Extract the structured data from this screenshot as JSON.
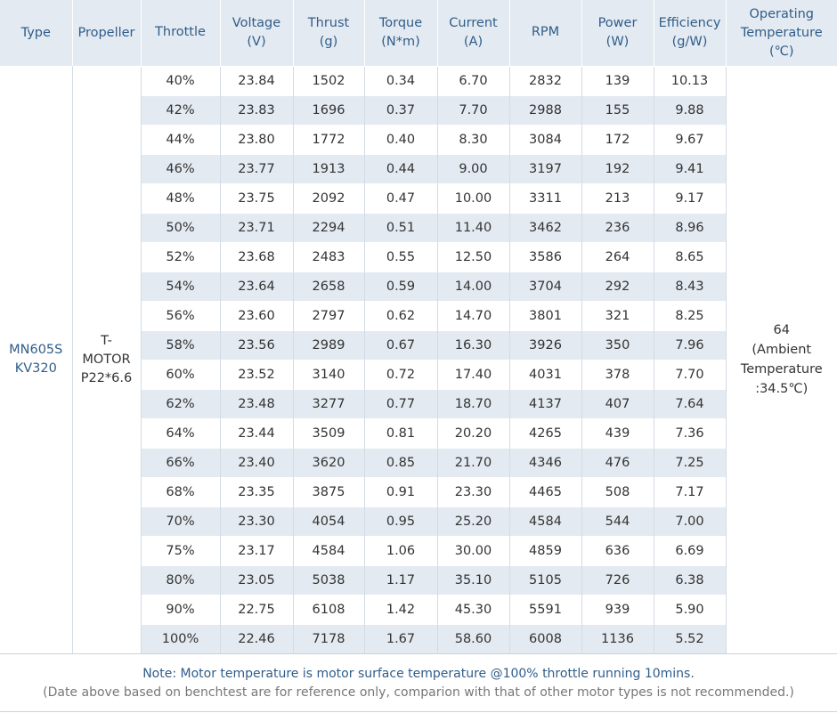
{
  "headers": {
    "type": "Type",
    "propeller": "Propeller",
    "throttle": "Throttle",
    "voltage": "Voltage",
    "voltage_unit": "(V)",
    "thrust": "Thrust",
    "thrust_unit": "(g)",
    "torque": "Torque",
    "torque_unit": "(N*m)",
    "current": "Current",
    "current_unit": "(A)",
    "rpm": "RPM",
    "power": "Power",
    "power_unit": "(W)",
    "efficiency": "Efficiency",
    "efficiency_unit": "(g/W)",
    "operating": "Operating",
    "temperature": "Temperature",
    "temperature_unit": "(℃)"
  },
  "motor": {
    "type_line1": "MN605S",
    "type_line2": "KV320",
    "prop_line1": "T-",
    "prop_line2": "MOTOR",
    "prop_line3": "P22*6.6",
    "temp_line1": "64",
    "temp_line2": "(Ambient",
    "temp_line3": "Temperature",
    "temp_line4": ":34.5℃)"
  },
  "rows": [
    {
      "throttle": "40%",
      "voltage": "23.84",
      "thrust": "1502",
      "torque": "0.34",
      "current": "6.70",
      "rpm": "2832",
      "power": "139",
      "efficiency": "10.13"
    },
    {
      "throttle": "42%",
      "voltage": "23.83",
      "thrust": "1696",
      "torque": "0.37",
      "current": "7.70",
      "rpm": "2988",
      "power": "155",
      "efficiency": "9.88"
    },
    {
      "throttle": "44%",
      "voltage": "23.80",
      "thrust": "1772",
      "torque": "0.40",
      "current": "8.30",
      "rpm": "3084",
      "power": "172",
      "efficiency": "9.67"
    },
    {
      "throttle": "46%",
      "voltage": "23.77",
      "thrust": "1913",
      "torque": "0.44",
      "current": "9.00",
      "rpm": "3197",
      "power": "192",
      "efficiency": "9.41"
    },
    {
      "throttle": "48%",
      "voltage": "23.75",
      "thrust": "2092",
      "torque": "0.47",
      "current": "10.00",
      "rpm": "3311",
      "power": "213",
      "efficiency": "9.17"
    },
    {
      "throttle": "50%",
      "voltage": "23.71",
      "thrust": "2294",
      "torque": "0.51",
      "current": "11.40",
      "rpm": "3462",
      "power": "236",
      "efficiency": "8.96"
    },
    {
      "throttle": "52%",
      "voltage": "23.68",
      "thrust": "2483",
      "torque": "0.55",
      "current": "12.50",
      "rpm": "3586",
      "power": "264",
      "efficiency": "8.65"
    },
    {
      "throttle": "54%",
      "voltage": "23.64",
      "thrust": "2658",
      "torque": "0.59",
      "current": "14.00",
      "rpm": "3704",
      "power": "292",
      "efficiency": "8.43"
    },
    {
      "throttle": "56%",
      "voltage": "23.60",
      "thrust": "2797",
      "torque": "0.62",
      "current": "14.70",
      "rpm": "3801",
      "power": "321",
      "efficiency": "8.25"
    },
    {
      "throttle": "58%",
      "voltage": "23.56",
      "thrust": "2989",
      "torque": "0.67",
      "current": "16.30",
      "rpm": "3926",
      "power": "350",
      "efficiency": "7.96"
    },
    {
      "throttle": "60%",
      "voltage": "23.52",
      "thrust": "3140",
      "torque": "0.72",
      "current": "17.40",
      "rpm": "4031",
      "power": "378",
      "efficiency": "7.70"
    },
    {
      "throttle": "62%",
      "voltage": "23.48",
      "thrust": "3277",
      "torque": "0.77",
      "current": "18.70",
      "rpm": "4137",
      "power": "407",
      "efficiency": "7.64"
    },
    {
      "throttle": "64%",
      "voltage": "23.44",
      "thrust": "3509",
      "torque": "0.81",
      "current": "20.20",
      "rpm": "4265",
      "power": "439",
      "efficiency": "7.36"
    },
    {
      "throttle": "66%",
      "voltage": "23.40",
      "thrust": "3620",
      "torque": "0.85",
      "current": "21.70",
      "rpm": "4346",
      "power": "476",
      "efficiency": "7.25"
    },
    {
      "throttle": "68%",
      "voltage": "23.35",
      "thrust": "3875",
      "torque": "0.91",
      "current": "23.30",
      "rpm": "4465",
      "power": "508",
      "efficiency": "7.17"
    },
    {
      "throttle": "70%",
      "voltage": "23.30",
      "thrust": "4054",
      "torque": "0.95",
      "current": "25.20",
      "rpm": "4584",
      "power": "544",
      "efficiency": "7.00"
    },
    {
      "throttle": "75%",
      "voltage": "23.17",
      "thrust": "4584",
      "torque": "1.06",
      "current": "30.00",
      "rpm": "4859",
      "power": "636",
      "efficiency": "6.69"
    },
    {
      "throttle": "80%",
      "voltage": "23.05",
      "thrust": "5038",
      "torque": "1.17",
      "current": "35.10",
      "rpm": "5105",
      "power": "726",
      "efficiency": "6.38"
    },
    {
      "throttle": "90%",
      "voltage": "22.75",
      "thrust": "6108",
      "torque": "1.42",
      "current": "45.30",
      "rpm": "5591",
      "power": "939",
      "efficiency": "5.90"
    },
    {
      "throttle": "100%",
      "voltage": "22.46",
      "thrust": "7178",
      "torque": "1.67",
      "current": "58.60",
      "rpm": "6008",
      "power": "1136",
      "efficiency": "5.52"
    }
  ],
  "note": {
    "line1": "Note: Motor temperature is motor surface temperature @100% throttle running 10mins.",
    "line2": "(Date above based on benchtest are for reference only, comparion with that of other motor types is not recommended.)"
  }
}
